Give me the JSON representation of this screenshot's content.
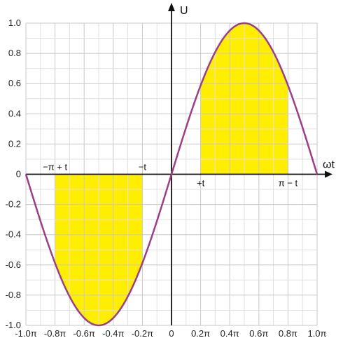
{
  "chart_data": {
    "type": "line",
    "title": "",
    "xlabel": "ωt",
    "ylabel": "U",
    "xlim": [
      -1.0,
      1.0
    ],
    "ylim": [
      -1.0,
      1.0
    ],
    "x_unit": "π",
    "grid": true,
    "x_ticks": [
      -1.0,
      -0.8,
      -0.6,
      -0.4,
      -0.2,
      0,
      0.2,
      0.4,
      0.6,
      0.8,
      1.0
    ],
    "x_tick_labels": [
      "-1.0π",
      "-0.8π",
      "-0.6π",
      "-0.4π",
      "-0.2π",
      "0",
      "0.2π",
      "0.4π",
      "0.6π",
      "0.8π",
      "1.0π"
    ],
    "y_ticks": [
      -1.0,
      -0.8,
      -0.6,
      -0.4,
      -0.2,
      0,
      0.2,
      0.4,
      0.6,
      0.8,
      1.0
    ],
    "y_tick_labels": [
      "-1.0",
      "-0.8",
      "-0.6",
      "-0.4",
      "-0.2",
      "0",
      "0.2",
      "0.4",
      "0.6",
      "0.8",
      "1.0"
    ],
    "series": [
      {
        "function": "sin(ωt)",
        "color": "#9b3f86",
        "x": [
          -1.0,
          -0.9,
          -0.8,
          -0.7,
          -0.6,
          -0.5,
          -0.4,
          -0.3,
          -0.2,
          -0.1,
          0,
          0.1,
          0.2,
          0.3,
          0.4,
          0.5,
          0.6,
          0.7,
          0.8,
          0.9,
          1.0
        ],
        "y": [
          0,
          -0.309,
          -0.588,
          -0.809,
          -0.951,
          -1.0,
          -0.951,
          -0.809,
          -0.588,
          -0.309,
          0,
          0.309,
          0.588,
          0.809,
          0.951,
          1.0,
          0.951,
          0.809,
          0.588,
          0.309,
          0
        ]
      }
    ],
    "shaded_regions": [
      {
        "x_from": -0.8,
        "x_to": -0.2,
        "color": "#ffee00"
      },
      {
        "x_from": 0.2,
        "x_to": 0.8,
        "color": "#ffee00"
      }
    ],
    "annotations": [
      {
        "text": "−π + t",
        "x": -0.8,
        "side": "above"
      },
      {
        "text": "−t",
        "x": -0.2,
        "side": "above"
      },
      {
        "text": "+t",
        "x": 0.2,
        "side": "below"
      },
      {
        "text": "π − t",
        "x": 0.8,
        "side": "below"
      }
    ]
  }
}
